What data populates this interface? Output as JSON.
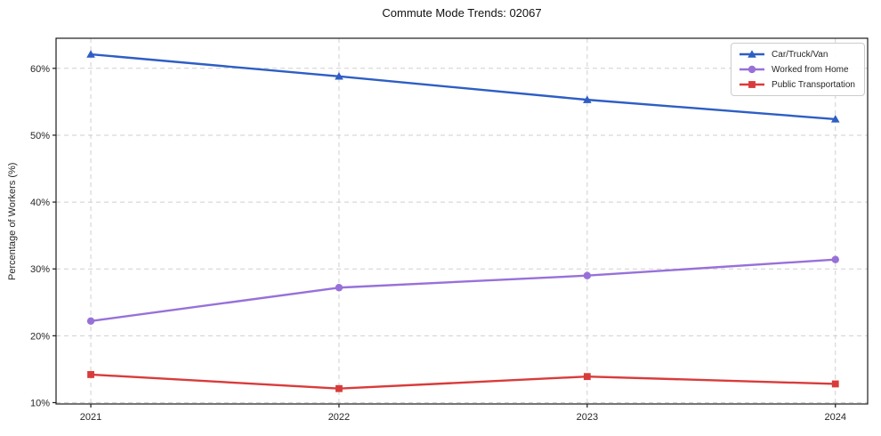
{
  "title": "Commute Mode Trends: 02067",
  "chart_data": {
    "type": "line",
    "x": [
      2021,
      2022,
      2023,
      2024
    ],
    "x_tick_labels": [
      "2021",
      "2022",
      "2023",
      "2024"
    ],
    "y_ticks": [
      10,
      20,
      30,
      40,
      50,
      60
    ],
    "y_tick_labels": [
      "10%",
      "20%",
      "30%",
      "40%",
      "50%",
      "60%"
    ],
    "xlim": [
      2020.86,
      2024.13
    ],
    "ylim": [
      9.8,
      64.5
    ],
    "xlabel": "",
    "ylabel": "Percentage of Workers (%)",
    "grid": true,
    "grid_style": "dashed",
    "legend_position": "upper right",
    "series": [
      {
        "name": "Car/Truck/Van",
        "marker": "triangle",
        "color": "#2e5ec4",
        "values": [
          62.1,
          58.8,
          55.3,
          52.4
        ]
      },
      {
        "name": "Worked from Home",
        "marker": "circle",
        "color": "#9771d9",
        "values": [
          22.2,
          27.2,
          29.0,
          31.4
        ]
      },
      {
        "name": "Public Transportation",
        "marker": "square",
        "color": "#d93b3b",
        "values": [
          14.2,
          12.1,
          13.9,
          12.8
        ]
      }
    ],
    "colors": {
      "grid": "#cfcfcf",
      "axis": "#1a1a1a",
      "tick_text": "#262626",
      "legend_border": "#cccccc"
    }
  }
}
